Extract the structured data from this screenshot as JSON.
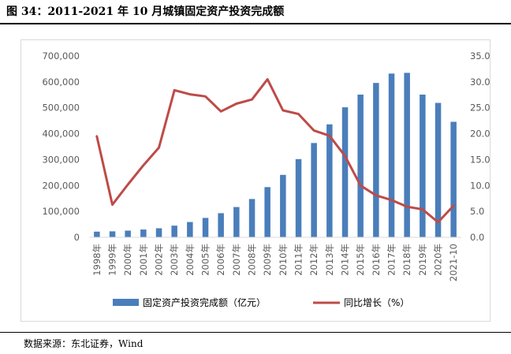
{
  "figure": {
    "title": "图 34：2011-2021 年 10 月城镇固定资产投资完成额",
    "source": "数据来源：东北证券，Wind"
  },
  "colors": {
    "bar": "#4a7ebb",
    "line": "#be4b48",
    "axis_text": "#595959",
    "frame": "#d9d9d9"
  },
  "chart_data": {
    "type": "bar",
    "combo": "bar-line-dual-axis",
    "categories": [
      "1998年",
      "1999年",
      "2000年",
      "2001年",
      "2002年",
      "2003年",
      "2004年",
      "2005年",
      "2006年",
      "2007年",
      "2008年",
      "2009年",
      "2010年",
      "2011年",
      "2012年",
      "2013年",
      "2014年",
      "2015年",
      "2016年",
      "2017年",
      "2018年",
      "2019年",
      "2020年",
      "2021-10"
    ],
    "series": [
      {
        "name": "固定资产投资完成额（亿元）",
        "type": "bar",
        "axis": "left",
        "values": [
          22000,
          23000,
          26000,
          30000,
          35000,
          45000,
          59000,
          75000,
          93000,
          117000,
          148000,
          194000,
          241000,
          302000,
          364000,
          436000,
          502000,
          551000,
          596000,
          632000,
          635000,
          551000,
          519000,
          446000
        ]
      },
      {
        "name": "同比增长（%）",
        "type": "line",
        "axis": "right",
        "values": [
          19.5,
          6.3,
          10.2,
          13.9,
          17.3,
          28.4,
          27.6,
          27.2,
          24.3,
          25.8,
          26.6,
          30.5,
          24.5,
          23.8,
          20.6,
          19.6,
          15.7,
          10.0,
          8.1,
          7.2,
          5.9,
          5.4,
          2.9,
          6.1
        ]
      }
    ],
    "y_left": {
      "min": 0,
      "max": 700000,
      "step": 100000,
      "tick_labels": [
        "0",
        "100,000",
        "200,000",
        "300,000",
        "400,000",
        "500,000",
        "600,000",
        "700,000"
      ]
    },
    "y_right": {
      "min": 0,
      "max": 35,
      "step": 5,
      "tick_labels": [
        "0.0",
        "5.0",
        "10.0",
        "15.0",
        "20.0",
        "25.0",
        "30.0",
        "35.0"
      ]
    },
    "x_tick_rotation": "vertical",
    "grid": false,
    "legend_position": "bottom"
  }
}
